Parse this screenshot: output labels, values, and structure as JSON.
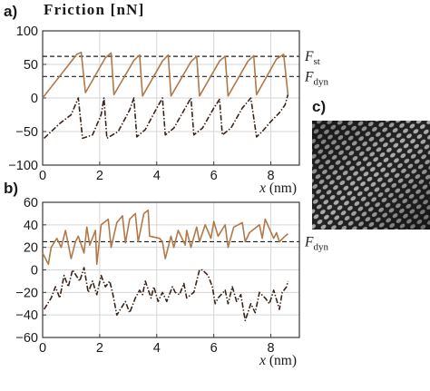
{
  "ylabel": "Friction [nN]",
  "panel_c": {
    "label": "c)"
  },
  "colors": {
    "stick": "#b0794a",
    "dashed": "#3a2418",
    "axis": "#3a3a3a",
    "grid": "#d6d6d6"
  },
  "chart_data": [
    {
      "type": "line",
      "panel": "a)",
      "ylabel": "Friction [nN]",
      "xlabel": "x (nm)",
      "xlim": [
        0,
        9
      ],
      "ylim": [
        -100,
        100
      ],
      "xticks": [
        "0",
        "2",
        "4",
        "6",
        "8"
      ],
      "yticks": [
        "100",
        "50",
        "0",
        "−50",
        "−100"
      ],
      "grid": true,
      "series": [
        {
          "style": "solid",
          "x": [
            0,
            1.2,
            1.35,
            1.5,
            2.2,
            2.4,
            2.5,
            3.2,
            3.4,
            3.5,
            4.2,
            4.4,
            4.5,
            5.2,
            5.4,
            5.5,
            6.2,
            6.4,
            6.5,
            7.2,
            7.4,
            7.5,
            8.2,
            8.45,
            8.6
          ],
          "y": [
            0,
            65,
            68,
            8,
            60,
            67,
            5,
            56,
            64,
            3,
            55,
            64,
            3,
            54,
            62,
            3,
            55,
            62,
            3,
            55,
            63,
            5,
            58,
            65,
            5
          ]
        },
        {
          "style": "dashdot",
          "x": [
            0.05,
            0.6,
            1.0,
            1.1,
            1.25,
            1.4,
            1.75,
            2.05,
            2.15,
            2.25,
            2.65,
            3.05,
            3.2,
            3.3,
            3.6,
            4.0,
            4.2,
            4.3,
            4.6,
            5.0,
            5.2,
            5.3,
            5.6,
            6.0,
            6.2,
            6.3,
            6.6,
            7.0,
            7.3,
            7.5,
            7.7,
            8.0,
            8.3,
            8.5,
            8.6
          ],
          "y": [
            -60,
            -38,
            -25,
            -15,
            0,
            -60,
            -55,
            -25,
            0,
            -60,
            -50,
            -18,
            0,
            -58,
            -47,
            -15,
            0,
            -55,
            -45,
            -15,
            0,
            -55,
            -45,
            -15,
            -2,
            -55,
            -45,
            -15,
            0,
            -58,
            -50,
            -35,
            -22,
            -10,
            5
          ]
        }
      ],
      "annotations": [
        {
          "label": "F",
          "sub": "st",
          "y": 62
        },
        {
          "label": "F",
          "sub": "dyn",
          "y": 32
        }
      ]
    },
    {
      "type": "line",
      "panel": "b)",
      "xlabel": "x (nm)",
      "xlim": [
        0,
        9
      ],
      "ylim": [
        -60,
        60
      ],
      "xticks": [
        "0",
        "2",
        "4",
        "6",
        "8"
      ],
      "yticks": [
        "60",
        "40",
        "20",
        "0",
        "−20",
        "−40",
        "−60"
      ],
      "grid": true,
      "series": [
        {
          "style": "solid",
          "x": [
            0,
            0.2,
            0.3,
            0.5,
            0.65,
            0.8,
            1.0,
            1.15,
            1.25,
            1.45,
            1.55,
            1.65,
            1.85,
            1.9,
            2.05,
            2.3,
            2.4,
            2.6,
            2.8,
            2.9,
            3.05,
            3.25,
            3.35,
            3.55,
            3.7,
            3.75,
            4.1,
            4.2,
            4.3,
            4.5,
            4.6,
            4.75,
            5.0,
            5.05,
            5.2,
            5.4,
            5.5,
            5.7,
            5.9,
            6.0,
            6.15,
            6.4,
            6.5,
            6.7,
            7.0,
            7.1,
            7.25,
            7.6,
            7.7,
            7.8,
            8.1,
            8.2,
            8.3,
            8.5,
            8.6
          ],
          "y": [
            15,
            5,
            20,
            28,
            20,
            35,
            10,
            25,
            30,
            15,
            38,
            22,
            35,
            5,
            40,
            45,
            20,
            42,
            48,
            24,
            45,
            50,
            25,
            50,
            53,
            30,
            28,
            25,
            10,
            30,
            20,
            35,
            22,
            35,
            20,
            38,
            25,
            40,
            28,
            43,
            30,
            40,
            20,
            38,
            42,
            25,
            33,
            40,
            28,
            45,
            28,
            33,
            25,
            30,
            32
          ]
        },
        {
          "style": "dashdot",
          "x": [
            0.05,
            0.3,
            0.45,
            0.6,
            0.75,
            0.9,
            1.05,
            1.3,
            1.45,
            1.6,
            1.75,
            1.9,
            2.05,
            2.2,
            2.35,
            2.45,
            2.6,
            2.9,
            3.05,
            3.25,
            3.4,
            3.5,
            3.6,
            3.8,
            3.9,
            4.05,
            4.2,
            4.35,
            4.55,
            4.65,
            4.8,
            4.95,
            5.05,
            5.3,
            5.5,
            5.6,
            5.8,
            5.95,
            6.05,
            6.15,
            6.4,
            6.5,
            6.65,
            6.8,
            6.95,
            7.1,
            7.3,
            7.45,
            7.6,
            7.8,
            7.95,
            8.1,
            8.3,
            8.4,
            8.55,
            8.6
          ],
          "y": [
            -35,
            -25,
            -15,
            -25,
            -5,
            -15,
            0,
            -10,
            2,
            -20,
            -10,
            -22,
            -5,
            -15,
            -10,
            -20,
            -40,
            -28,
            -38,
            -25,
            -18,
            -22,
            -10,
            -25,
            -15,
            -28,
            -20,
            -28,
            -15,
            -20,
            -22,
            -12,
            -25,
            -20,
            0,
            0,
            -5,
            -15,
            -30,
            -25,
            -18,
            -30,
            -15,
            -28,
            -22,
            -45,
            -30,
            -38,
            -20,
            -25,
            -30,
            -18,
            -35,
            -20,
            -15,
            -10
          ]
        }
      ],
      "annotations": [
        {
          "label": "F",
          "sub": "dyn",
          "y": 25
        }
      ]
    }
  ]
}
